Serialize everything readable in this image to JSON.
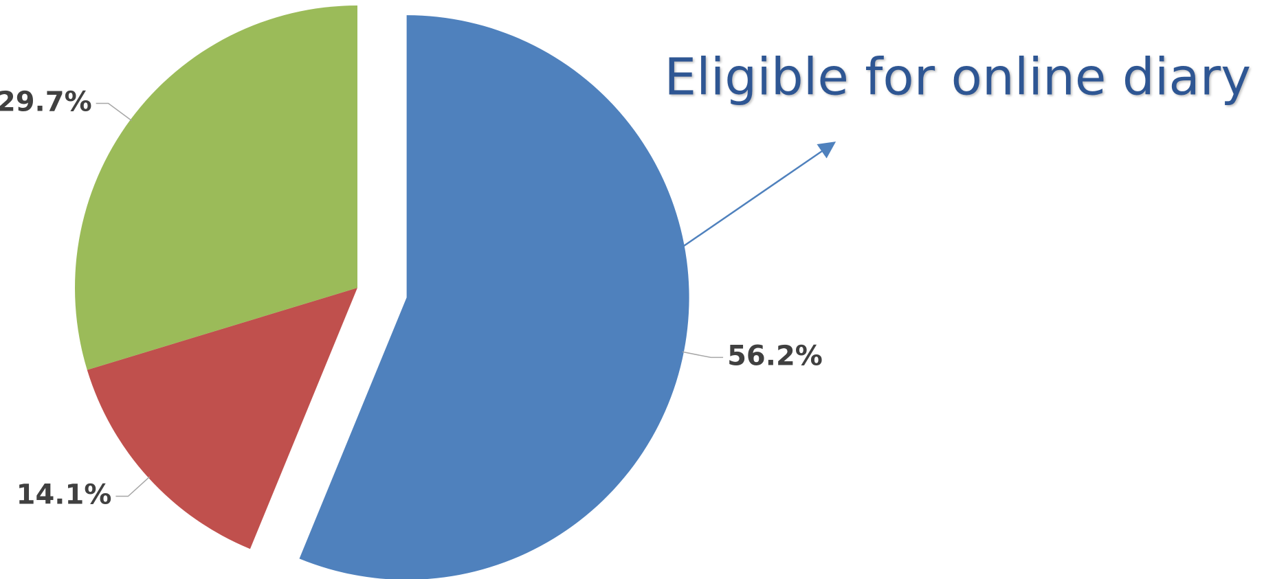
{
  "chart_data": {
    "type": "pie",
    "values": [
      56.2,
      14.1,
      29.7
    ],
    "value_labels": [
      "56.2%",
      "14.1%",
      "29.7%"
    ],
    "colors": [
      "#4f81bd",
      "#c0504d",
      "#9bbb59"
    ],
    "exploded": [
      true,
      false,
      false
    ],
    "annotation": "Eligible for online diary"
  }
}
